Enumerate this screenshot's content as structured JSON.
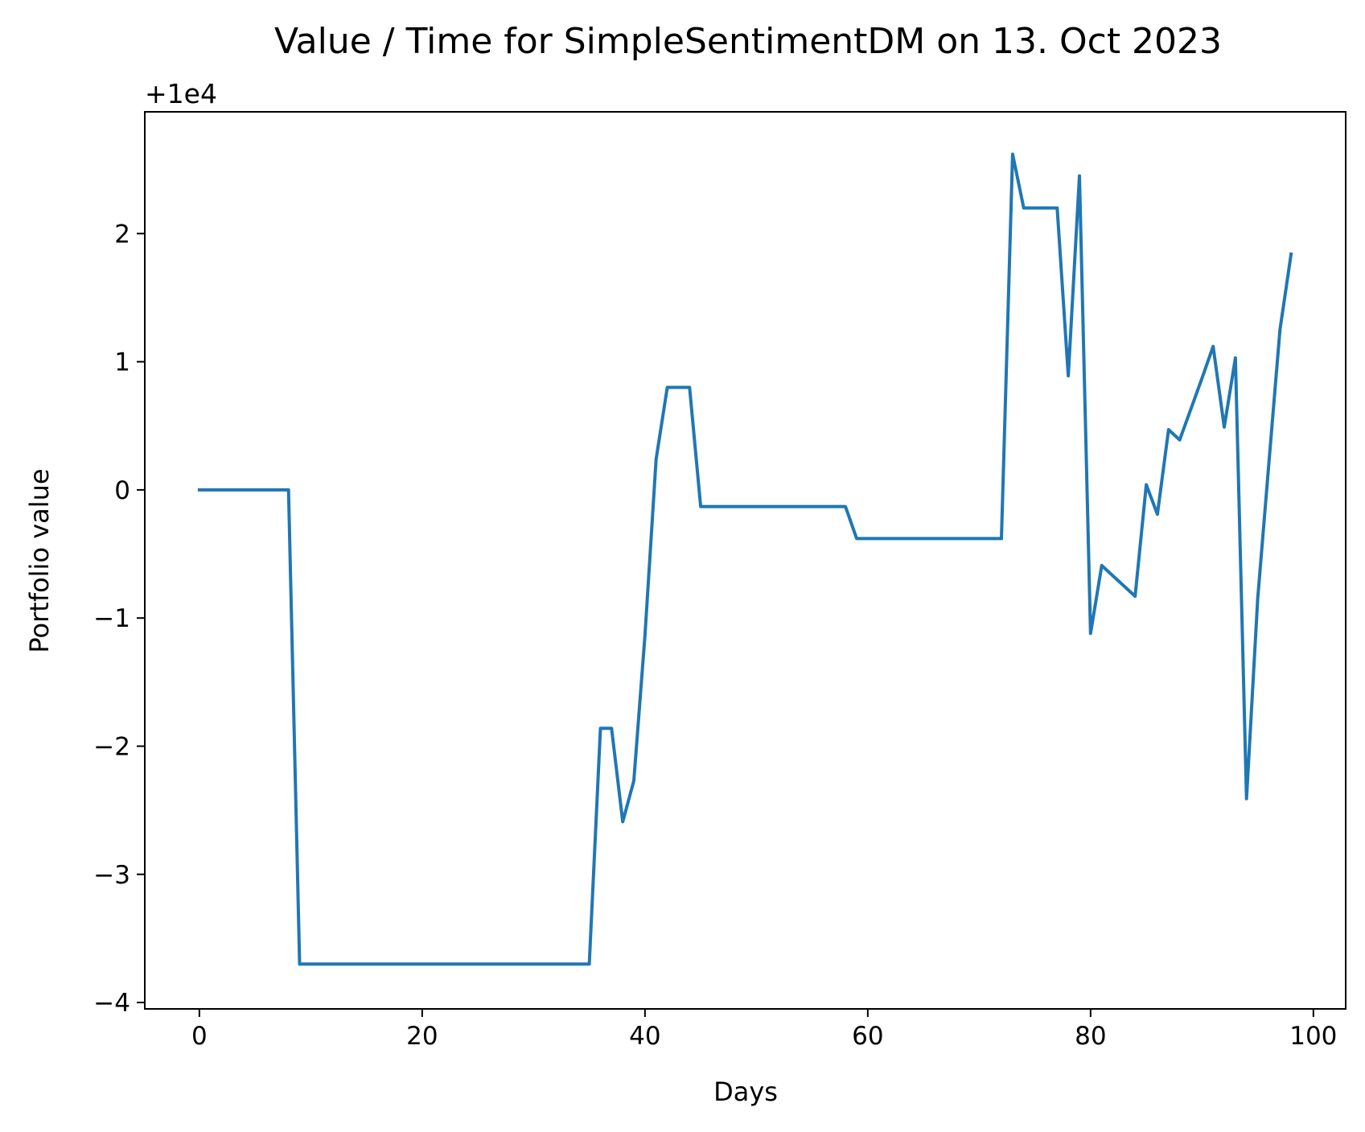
{
  "chart_data": {
    "type": "line",
    "title": "Value / Time for SimpleSentimentDM on 13. Oct 2023",
    "xlabel": "Days",
    "ylabel": "Portfolio value",
    "y_offset_label": "+1e4",
    "xlim": [
      -4.9,
      102.9
    ],
    "ylim": [
      -4.05,
      2.95
    ],
    "xticks": [
      0,
      20,
      40,
      60,
      80,
      100
    ],
    "yticks": [
      -4,
      -3,
      -2,
      -1,
      0,
      1,
      2
    ],
    "xtick_labels": [
      "0",
      "20",
      "40",
      "60",
      "80",
      "100"
    ],
    "ytick_labels": [
      "−4",
      "−3",
      "−2",
      "−1",
      "0",
      "1",
      "2"
    ],
    "grid": false,
    "line_color": "#1f77b4",
    "series": [
      {
        "x": [
          0,
          1,
          2,
          3,
          4,
          5,
          6,
          7,
          8,
          9,
          10,
          11,
          12,
          13,
          14,
          15,
          16,
          17,
          18,
          19,
          20,
          21,
          22,
          23,
          24,
          25,
          26,
          27,
          28,
          29,
          30,
          31,
          32,
          33,
          34,
          35,
          36,
          37,
          38,
          39,
          40,
          41,
          42,
          43,
          44,
          45,
          46,
          47,
          48,
          49,
          50,
          51,
          52,
          53,
          54,
          55,
          56,
          57,
          58,
          59,
          60,
          61,
          62,
          63,
          64,
          65,
          66,
          67,
          68,
          69,
          70,
          71,
          72,
          73,
          74,
          75,
          76,
          77,
          78,
          79,
          80,
          81,
          82,
          83,
          84,
          85,
          86,
          87,
          88,
          89,
          90,
          91,
          92,
          93,
          94,
          95,
          96,
          97,
          98
        ],
        "y": [
          0,
          0,
          0,
          0,
          0,
          0,
          0,
          0,
          0,
          -3.7,
          -3.7,
          -3.7,
          -3.7,
          -3.7,
          -3.7,
          -3.7,
          -3.7,
          -3.7,
          -3.7,
          -3.7,
          -3.7,
          -3.7,
          -3.7,
          -3.7,
          -3.7,
          -3.7,
          -3.7,
          -3.7,
          -3.7,
          -3.7,
          -3.7,
          -3.7,
          -3.7,
          -3.7,
          -3.7,
          -3.7,
          -1.86,
          -1.86,
          -2.59,
          -2.27,
          -1.13,
          0.24,
          0.8,
          0.8,
          0.8,
          -0.13,
          -0.13,
          -0.13,
          -0.13,
          -0.13,
          -0.13,
          -0.13,
          -0.13,
          -0.13,
          -0.13,
          -0.13,
          -0.13,
          -0.13,
          -0.13,
          -0.38,
          -0.38,
          -0.38,
          -0.38,
          -0.38,
          -0.38,
          -0.38,
          -0.38,
          -0.38,
          -0.38,
          -0.38,
          -0.38,
          -0.38,
          -0.38,
          2.62,
          2.2,
          2.2,
          2.2,
          2.2,
          0.89,
          2.45,
          -1.12,
          -0.59,
          -0.67,
          -0.75,
          -0.83,
          0.04,
          -0.19,
          0.47,
          0.39,
          0.63,
          0.87,
          1.12,
          0.49,
          1.03,
          -2.41,
          -0.85,
          0.2,
          1.25,
          1.84
        ]
      }
    ]
  }
}
